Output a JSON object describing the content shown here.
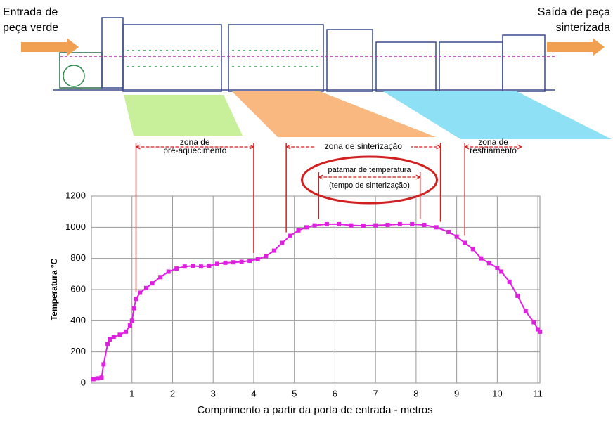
{
  "chart_data": {
    "type": "line",
    "entry_label": [
      "Entrada de",
      "peça verde"
    ],
    "exit_label": [
      "Saída de peça",
      "sinterizada"
    ],
    "x_label": "Comprimento a partir da porta de entrada - metros",
    "y_label": "Temperatura °C",
    "xlim": [
      0,
      11.05
    ],
    "ylim": [
      0,
      1200
    ],
    "xticks": [
      1,
      2,
      3,
      4,
      5,
      6,
      7,
      8,
      9,
      10,
      11
    ],
    "yticks": [
      0,
      200,
      400,
      600,
      800,
      1000,
      1200
    ],
    "grid": true,
    "series": [
      {
        "color": "#e020e0",
        "x": [
          0.05,
          0.15,
          0.25,
          0.3,
          0.4,
          0.45,
          0.55,
          0.7,
          0.85,
          0.95,
          1.0,
          1.05,
          1.1,
          1.2,
          1.35,
          1.5,
          1.7,
          1.9,
          2.1,
          2.3,
          2.5,
          2.7,
          2.9,
          3.1,
          3.3,
          3.5,
          3.7,
          3.9,
          4.1,
          4.3,
          4.5,
          4.7,
          4.9,
          5.1,
          5.3,
          5.5,
          5.8,
          6.1,
          6.4,
          6.7,
          7.0,
          7.3,
          7.6,
          7.9,
          8.2,
          8.5,
          8.8,
          9.0,
          9.2,
          9.4,
          9.6,
          9.8,
          10.0,
          10.1,
          10.3,
          10.5,
          10.7,
          10.9,
          11.0,
          11.05
        ],
        "values": [
          25,
          30,
          35,
          120,
          250,
          280,
          295,
          310,
          330,
          370,
          400,
          480,
          540,
          580,
          610,
          640,
          680,
          715,
          735,
          748,
          752,
          748,
          752,
          765,
          772,
          775,
          778,
          785,
          795,
          815,
          850,
          900,
          945,
          980,
          1000,
          1012,
          1020,
          1020,
          1012,
          1010,
          1012,
          1015,
          1020,
          1020,
          1015,
          1000,
          970,
          940,
          900,
          860,
          800,
          770,
          740,
          715,
          650,
          560,
          460,
          390,
          345,
          330
        ]
      }
    ],
    "zones": [
      {
        "label": [
          "zona de",
          "pré-aquecimento"
        ],
        "start": 1.1,
        "end": 4.0
      },
      {
        "label": [
          "zona de sinterização"
        ],
        "start": 4.8,
        "end": 8.6
      },
      {
        "label": [
          "zona de",
          "resfriamento"
        ],
        "start": 9.2,
        "end": 10.6
      }
    ],
    "plateau": {
      "label": [
        "patamar de temperatura",
        "(tempo de sinterização)"
      ],
      "start": 5.6,
      "end": 8.1
    }
  }
}
